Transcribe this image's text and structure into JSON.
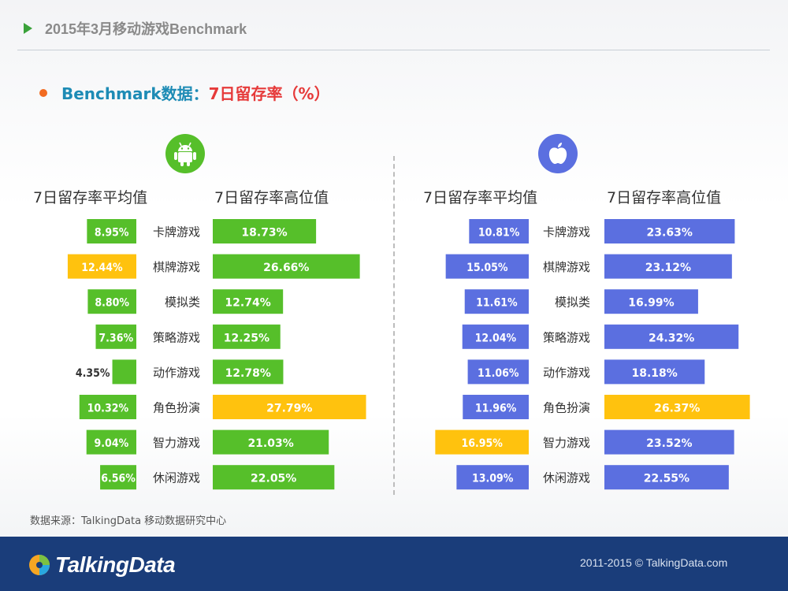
{
  "header": {
    "title": "2015年3月移动游戏Benchmark"
  },
  "subtitle": {
    "part1": "Benchmark数据：",
    "part2": "7日留存率（%）"
  },
  "icons": {
    "android": "android-robot-icon",
    "apple": "apple-logo-icon"
  },
  "colors": {
    "green": "#56bf2a",
    "yellow": "#ffc20e",
    "blue": "#5b6fe0",
    "accent_red": "#e63a3a",
    "accent_blue": "#1d8bb5"
  },
  "chart_data": [
    {
      "type": "bar",
      "platform": "Android",
      "categories": [
        "卡牌游戏",
        "棋牌游戏",
        "模拟类",
        "策略游戏",
        "动作游戏",
        "角色扮演",
        "智力游戏",
        "休闲游戏"
      ],
      "series": [
        {
          "name": "7日留存率平均值",
          "values": [
            8.95,
            12.44,
            8.8,
            7.36,
            4.35,
            10.32,
            9.04,
            6.56
          ],
          "labels": [
            "8.95%",
            "12.44%",
            "8.80%",
            "7.36%",
            "4.35%",
            "10.32%",
            "9.04%",
            "6.56%"
          ],
          "highlight_index": 1
        },
        {
          "name": "7日留存率高位值",
          "values": [
            18.73,
            26.66,
            12.74,
            12.25,
            12.78,
            27.79,
            21.03,
            22.05
          ],
          "labels": [
            "18.73%",
            "26.66%",
            "12.74%",
            "12.25%",
            "12.78%",
            "27.79%",
            "21.03%",
            "22.05%"
          ],
          "highlight_index": 5
        }
      ]
    },
    {
      "type": "bar",
      "platform": "iOS",
      "categories": [
        "卡牌游戏",
        "棋牌游戏",
        "模拟类",
        "策略游戏",
        "动作游戏",
        "角色扮演",
        "智力游戏",
        "休闲游戏"
      ],
      "series": [
        {
          "name": "7日留存率平均值",
          "values": [
            10.81,
            15.05,
            11.61,
            12.04,
            11.06,
            11.96,
            16.95,
            13.09
          ],
          "labels": [
            "10.81%",
            "15.05%",
            "11.61%",
            "12.04%",
            "11.06%",
            "11.96%",
            "16.95%",
            "13.09%"
          ],
          "highlight_index": 6
        },
        {
          "name": "7日留存率高位值",
          "values": [
            23.63,
            23.12,
            16.99,
            24.32,
            18.18,
            26.37,
            23.52,
            22.55
          ],
          "labels": [
            "23.63%",
            "23.12%",
            "16.99%",
            "24.32%",
            "18.18%",
            "26.37%",
            "23.52%",
            "22.55%"
          ],
          "highlight_index": 5
        }
      ]
    }
  ],
  "source": "数据来源：TalkingData 移动数据研究中心",
  "footer": {
    "logo": "TalkingData",
    "copyright": "2011-2015 © TalkingData.com"
  }
}
